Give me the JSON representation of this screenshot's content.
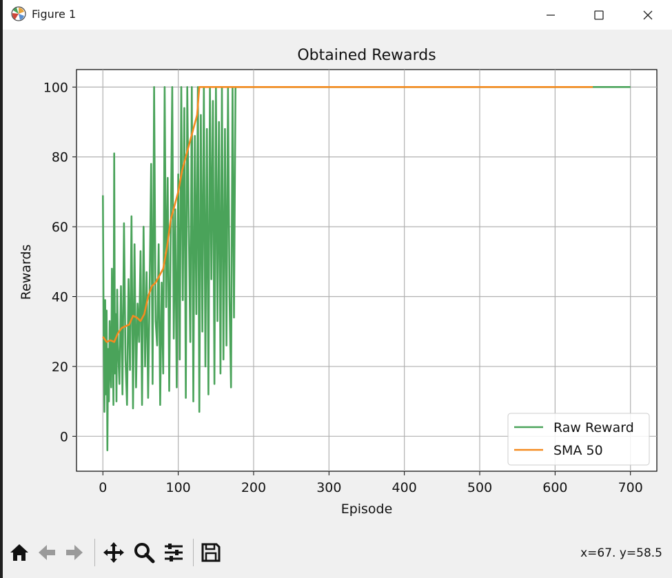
{
  "window": {
    "title": "Figure 1"
  },
  "status": {
    "coords": "x=67. y=58.5"
  },
  "chart_data": {
    "type": "line",
    "title": "Obtained Rewards",
    "xlabel": "Episode",
    "ylabel": "Rewards",
    "xlim": [
      -35,
      735
    ],
    "ylim": [
      -10,
      105
    ],
    "xticks": [
      0,
      100,
      200,
      300,
      400,
      500,
      600,
      700
    ],
    "yticks": [
      0,
      20,
      40,
      60,
      80,
      100
    ],
    "grid": true,
    "legend_position": "lower-right",
    "series": [
      {
        "name": "Raw Reward",
        "color": "#4aa35a",
        "x": [
          0,
          1,
          2,
          3,
          4,
          5,
          6,
          7,
          8,
          9,
          10,
          11,
          12,
          13,
          14,
          15,
          16,
          17,
          18,
          19,
          20,
          22,
          24,
          26,
          28,
          30,
          32,
          34,
          36,
          38,
          40,
          42,
          44,
          46,
          48,
          50,
          52,
          54,
          56,
          58,
          60,
          62,
          64,
          66,
          68,
          70,
          72,
          74,
          76,
          78,
          80,
          82,
          84,
          86,
          88,
          90,
          92,
          94,
          96,
          98,
          100,
          102,
          104,
          106,
          108,
          110,
          112,
          114,
          116,
          118,
          120,
          122,
          124,
          126,
          128,
          130,
          132,
          134,
          136,
          138,
          140,
          142,
          144,
          146,
          148,
          150,
          152,
          154,
          156,
          158,
          160,
          162,
          164,
          166,
          168,
          170,
          172,
          174,
          176,
          177,
          200,
          300,
          400,
          500,
          600,
          700
        ],
        "values": [
          69,
          30,
          7,
          39,
          12,
          36,
          -4,
          25,
          10,
          33,
          20,
          14,
          48,
          28,
          9,
          81,
          18,
          35,
          10,
          42,
          26,
          15,
          43,
          12,
          61,
          22,
          9,
          45,
          19,
          63,
          8,
          55,
          14,
          38,
          27,
          53,
          9,
          60,
          20,
          47,
          11,
          42,
          78,
          15,
          100,
          33,
          26,
          55,
          9,
          44,
          18,
          100,
          37,
          74,
          13,
          58,
          100,
          28,
          65,
          14,
          75,
          22,
          100,
          39,
          94,
          11,
          100,
          60,
          27,
          100,
          10,
          86,
          35,
          100,
          7,
          92,
          30,
          100,
          20,
          88,
          12,
          100,
          45,
          96,
          15,
          100,
          33,
          90,
          18,
          100,
          22,
          88,
          26,
          100,
          40,
          14,
          100,
          34,
          100,
          100,
          100,
          100,
          100,
          100,
          100,
          100
        ]
      },
      {
        "name": "SMA 50",
        "color": "#f58a1f",
        "x": [
          0,
          5,
          10,
          15,
          20,
          25,
          30,
          35,
          40,
          45,
          50,
          55,
          60,
          65,
          70,
          75,
          80,
          85,
          90,
          95,
          100,
          105,
          110,
          115,
          120,
          125,
          128,
          130,
          140,
          200,
          300,
          400,
          500,
          600,
          650
        ],
        "values": [
          28.5,
          27,
          27.5,
          27,
          29.5,
          31,
          31.5,
          32,
          34.5,
          34,
          33,
          35,
          40,
          43,
          44,
          46,
          48,
          54,
          62,
          66,
          70,
          76,
          80,
          84,
          88,
          92,
          100,
          100,
          100,
          100,
          100,
          100,
          100,
          100,
          100
        ]
      }
    ]
  }
}
